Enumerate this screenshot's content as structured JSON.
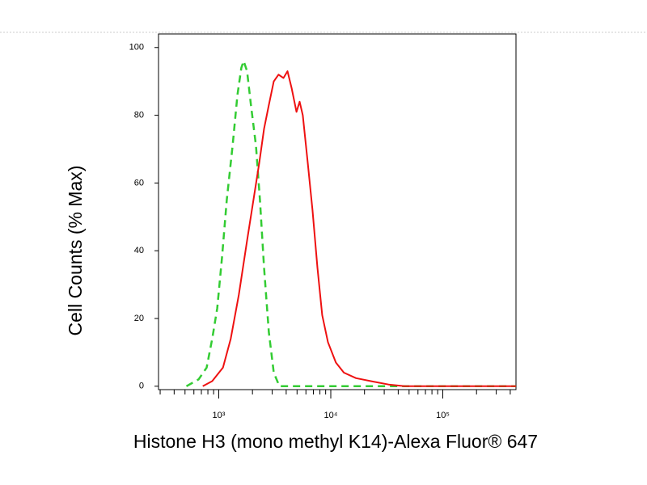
{
  "chart_data": {
    "type": "line",
    "xlabel": "Histone H3 (mono methyl K14)-Alexa Fluor® 647",
    "ylabel": "Cell Counts (% Max)",
    "xscale": "log",
    "xlim": [
      290,
      450000
    ],
    "ylim": [
      -1,
      104
    ],
    "xticks": [
      {
        "value": 1000,
        "label": "10³"
      },
      {
        "value": 10000,
        "label": "10⁴"
      },
      {
        "value": 100000,
        "label": "10⁵"
      }
    ],
    "xminorticks": [
      300,
      400,
      500,
      600,
      700,
      800,
      900,
      2000,
      3000,
      4000,
      5000,
      6000,
      7000,
      8000,
      9000,
      20000,
      30000,
      40000,
      50000,
      60000,
      70000,
      80000,
      90000,
      200000,
      300000,
      400000
    ],
    "yticks": [
      0,
      20,
      40,
      60,
      80,
      100
    ],
    "grid": false,
    "series": [
      {
        "color": "#33cc33",
        "dash": true,
        "x": [
          515,
          660,
          780,
          875,
          970,
          1070,
          1180,
          1330,
          1470,
          1590,
          1670,
          1790,
          1940,
          2150,
          2330,
          2540,
          2800,
          3100,
          3480,
          450000
        ],
        "values": [
          0,
          2,
          5.5,
          14,
          23,
          38,
          55,
          71,
          86,
          94,
          96,
          93,
          83,
          71,
          55,
          35,
          16,
          4,
          0,
          0
        ]
      },
      {
        "color": "#ee1111",
        "dash": false,
        "x": [
          720,
          875,
          1090,
          1280,
          1510,
          1790,
          2040,
          2300,
          2540,
          2800,
          3100,
          3420,
          3780,
          4110,
          4470,
          4940,
          5270,
          5630,
          6230,
          6870,
          7600,
          8380,
          9440,
          11100,
          13100,
          16800,
          23500,
          32800,
          45700,
          450000
        ],
        "values": [
          0,
          1.5,
          5.5,
          14,
          27,
          43,
          55,
          66,
          76,
          83,
          90,
          92,
          91,
          93,
          88,
          81,
          84,
          80,
          66,
          52,
          35,
          21,
          13,
          7,
          4,
          2.4,
          1.4,
          0.5,
          0,
          0
        ]
      }
    ]
  }
}
